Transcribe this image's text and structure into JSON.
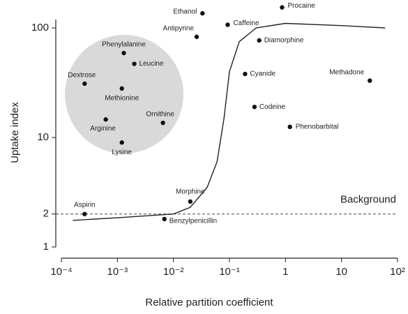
{
  "chart_data": {
    "type": "scatter",
    "xlabel": "Relative partition coefficient",
    "ylabel": "Uptake index",
    "xscale": "log",
    "yscale": "log",
    "xlim": [
      0.0001,
      100
    ],
    "ylim": [
      1,
      160
    ],
    "xticks": [
      {
        "value": 0.0001,
        "label": "10⁻⁴"
      },
      {
        "value": 0.001,
        "label": "10⁻³"
      },
      {
        "value": 0.01,
        "label": "10⁻²"
      },
      {
        "value": 0.1,
        "label": "10⁻¹"
      },
      1,
      10,
      {
        "value": 100,
        "label": "10²"
      }
    ],
    "yticks": [
      1,
      2,
      10,
      100
    ],
    "color": "#111111",
    "labels": [
      "Ethanol",
      "Caffeine",
      "Antipyrine",
      "Procaine",
      "Diamorphine",
      "Phenylalanine",
      "Leucine",
      "Dextrose",
      "Methionine",
      "Cyanide",
      "Methadone",
      "Codeine",
      "Arginine",
      "Ornithine",
      "Phenobarbital",
      "Lysine",
      "Morphine",
      "Aspirin",
      "Benzylpenicillin"
    ],
    "x": [
      0.033,
      0.093,
      0.026,
      0.87,
      0.34,
      0.0013,
      0.002,
      0.00026,
      0.0012,
      0.19,
      32,
      0.28,
      0.00062,
      0.0065,
      1.2,
      0.0012,
      0.02,
      0.00026,
      0.0069
    ],
    "values": [
      136,
      107,
      83,
      154,
      77,
      59,
      47,
      31,
      28,
      38,
      33,
      19,
      14.6,
      13.6,
      12.5,
      9,
      2.6,
      2,
      1.8
    ],
    "curve": {
      "x": [
        0.00016,
        0.001,
        0.01,
        0.02,
        0.04,
        0.06,
        0.08,
        0.1,
        0.15,
        0.3,
        1,
        10,
        60
      ],
      "y": [
        1.75,
        1.85,
        2.0,
        2.3,
        3.5,
        6,
        15,
        40,
        75,
        100,
        110,
        105,
        100
      ]
    },
    "annotation": {
      "text": "Background",
      "y": 2
    }
  }
}
